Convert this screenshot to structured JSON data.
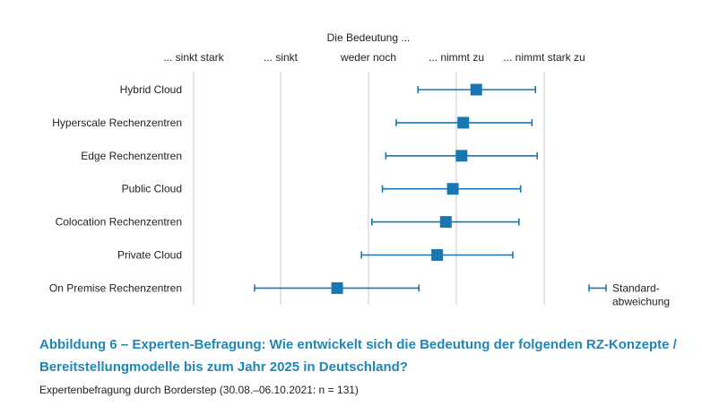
{
  "chart_data": {
    "type": "scatter",
    "subtitle": "Die Bedeutung ...",
    "scale_labels": [
      "... sinkt stark",
      "... sinkt",
      "weder noch",
      "... nimmt zu",
      "... nimmt stark zu"
    ],
    "xlim": [
      1,
      5
    ],
    "categories": [
      "Hybrid Cloud",
      "Hyperscale Rechenzentren",
      "Edge Rechenzentren",
      "Public Cloud",
      "Colocation Rechenzentren",
      "Private Cloud",
      "On Premise Rechenzentren"
    ],
    "series": [
      {
        "values": [
          4.25,
          4.1,
          4.08,
          3.98,
          3.9,
          3.8,
          2.65
        ],
        "std_low": [
          3.58,
          3.33,
          3.21,
          3.17,
          3.05,
          2.93,
          1.7
        ],
        "std_high": [
          4.93,
          4.89,
          4.95,
          4.76,
          4.74,
          4.67,
          3.59
        ]
      }
    ],
    "legend": {
      "label_line1": "Standard-",
      "label_line2": "abweichung",
      "position": "right"
    },
    "colors": {
      "marker": "#1877b3",
      "grid": "#c8c8c8",
      "text": "#222222"
    }
  },
  "caption": {
    "title_line1": "Abbildung 6 – Experten-Befragung: Wie entwickelt sich die Bedeutung der folgenden RZ-Konzepte /",
    "title_line2": "Bereitstellungmodelle bis zum Jahr 2025 in Deutschland?",
    "source": "Expertenbefragung durch Borderstep (30.08.–06.10.2021: n = 131)"
  }
}
